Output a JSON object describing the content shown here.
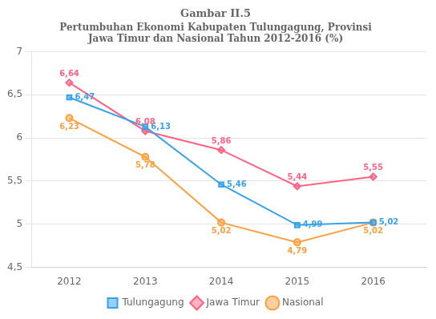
{
  "chart_data": {
    "type": "line",
    "title": "Gambar II.5",
    "subtitle": "Pertumbuhan Ekonomi Kabupaten Tulungagung, Provinsi\nJawa Timur dan Nasional Tahun 2012-2016 (%)",
    "x": [
      2012,
      2013,
      2014,
      2015,
      2016
    ],
    "series": [
      {
        "name": "Tulungagung",
        "marker": "square",
        "values": [
          6.47,
          6.13,
          5.46,
          4.99,
          5.02
        ],
        "value_labels": [
          "6,47",
          "6,13",
          "5,46",
          "4,99",
          "5,02"
        ]
      },
      {
        "name": "Jawa Timur",
        "marker": "diamond",
        "values": [
          6.64,
          6.08,
          5.86,
          5.44,
          5.55
        ],
        "value_labels": [
          "6,64",
          "6,08",
          "5,86",
          "5,44",
          "5,55"
        ]
      },
      {
        "name": "Nasional",
        "marker": "circle",
        "values": [
          6.23,
          5.78,
          5.02,
          4.79,
          5.02
        ],
        "value_labels": [
          "6,23",
          "5,78",
          "5,02",
          "4,79",
          "5,02"
        ]
      }
    ],
    "xlim": [
      2011.5,
      2016.7
    ],
    "xticks": [
      2012,
      2013,
      2014,
      2015,
      2016
    ],
    "ylim": [
      4.5,
      7.0
    ],
    "yticks": [
      {
        "value": 4.5,
        "label": "4,5"
      },
      5,
      {
        "value": 5.5,
        "label": "5,5"
      },
      6,
      {
        "value": 6.5,
        "label": "6,5"
      },
      7
    ],
    "grid": "y",
    "legend": "bottom",
    "data_labels": true
  }
}
